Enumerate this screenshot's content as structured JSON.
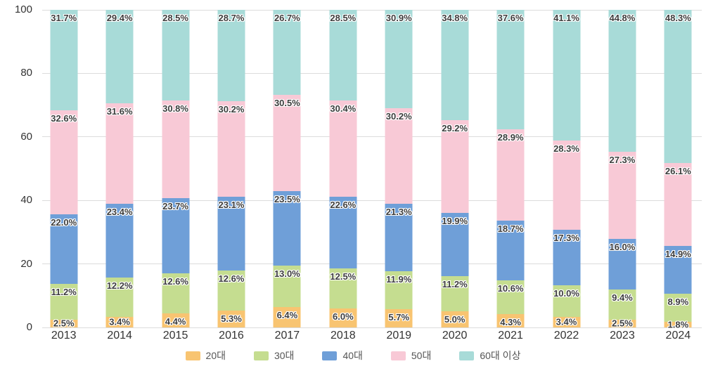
{
  "chart_data": {
    "type": "bar",
    "stacked": true,
    "title": "",
    "xlabel": "",
    "ylabel": "",
    "ylim": [
      0,
      100
    ],
    "y_ticks": [
      0,
      20,
      40,
      60,
      80,
      100
    ],
    "grid": true,
    "legend_position": "bottom",
    "value_suffix": "%",
    "categories": [
      "2013",
      "2014",
      "2015",
      "2016",
      "2017",
      "2018",
      "2019",
      "2020",
      "2021",
      "2022",
      "2023",
      "2024"
    ],
    "series": [
      {
        "name": "20대",
        "color": "#f8c471",
        "values": [
          2.5,
          3.4,
          4.4,
          5.3,
          6.4,
          6.0,
          5.7,
          5.0,
          4.3,
          3.4,
          2.5,
          1.8
        ]
      },
      {
        "name": "30대",
        "color": "#c5dd90",
        "values": [
          11.2,
          12.2,
          12.6,
          12.6,
          13.0,
          12.5,
          11.9,
          11.2,
          10.6,
          10.0,
          9.4,
          8.9
        ]
      },
      {
        "name": "40대",
        "color": "#6f9fd8",
        "values": [
          22.0,
          23.4,
          23.7,
          23.1,
          23.5,
          22.6,
          21.3,
          19.9,
          18.7,
          17.3,
          16.0,
          14.9
        ]
      },
      {
        "name": "50대",
        "color": "#f8c9d6",
        "values": [
          32.6,
          31.6,
          30.8,
          30.2,
          30.5,
          30.4,
          30.2,
          29.2,
          28.9,
          28.3,
          27.3,
          26.1
        ]
      },
      {
        "name": "60대 이상",
        "color": "#a8dbd8",
        "values": [
          31.7,
          29.4,
          28.5,
          28.7,
          26.7,
          28.5,
          30.9,
          34.8,
          37.6,
          41.1,
          44.8,
          48.3
        ]
      }
    ]
  },
  "style": {
    "background": "#ffffff",
    "grid_color": "#dcdcdc",
    "axis_text_color": "#333333",
    "bar_label_color": "#3d3d3d",
    "legend_text_color": "#555555"
  }
}
